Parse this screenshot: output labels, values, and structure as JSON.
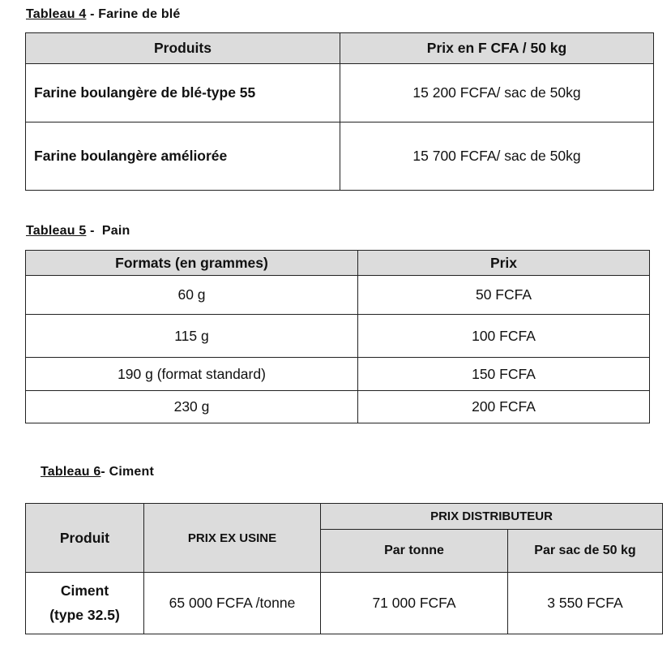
{
  "tableau4": {
    "label": "Tableau 4",
    "subtitle": " - Farine de blé",
    "headers": [
      "Produits",
      "Prix en F CFA / 50 kg"
    ],
    "rows": [
      [
        "Farine boulangère de blé-type 55",
        "15 200 FCFA/ sac de 50kg"
      ],
      [
        "Farine boulangère améliorée",
        "15 700 FCFA/ sac de 50kg"
      ]
    ]
  },
  "tableau5": {
    "label": "Tableau 5",
    "subtitle": " -  Pain",
    "headers": [
      "Formats (en grammes)",
      "Prix"
    ],
    "rows": [
      [
        "60 g",
        "50 FCFA"
      ],
      [
        "115 g",
        "100 FCFA"
      ],
      [
        "190 g (format standard)",
        "150 FCFA"
      ],
      [
        "230 g",
        "200 FCFA"
      ]
    ]
  },
  "tableau6": {
    "label": "Tableau 6",
    "subtitle": "- Ciment",
    "headers": {
      "produit": "Produit",
      "ex_usine": "PRIX EX USINE",
      "distributeur": "PRIX DISTRIBUTEUR",
      "par_tonne": "Par tonne",
      "par_sac": "Par sac de 50 kg"
    },
    "row": {
      "produit_line1": "Ciment",
      "produit_line2": "(type 32.5)",
      "ex_usine": "65 000 FCFA /tonne",
      "par_tonne": "71 000 FCFA",
      "par_sac": "3 550 FCFA"
    }
  }
}
